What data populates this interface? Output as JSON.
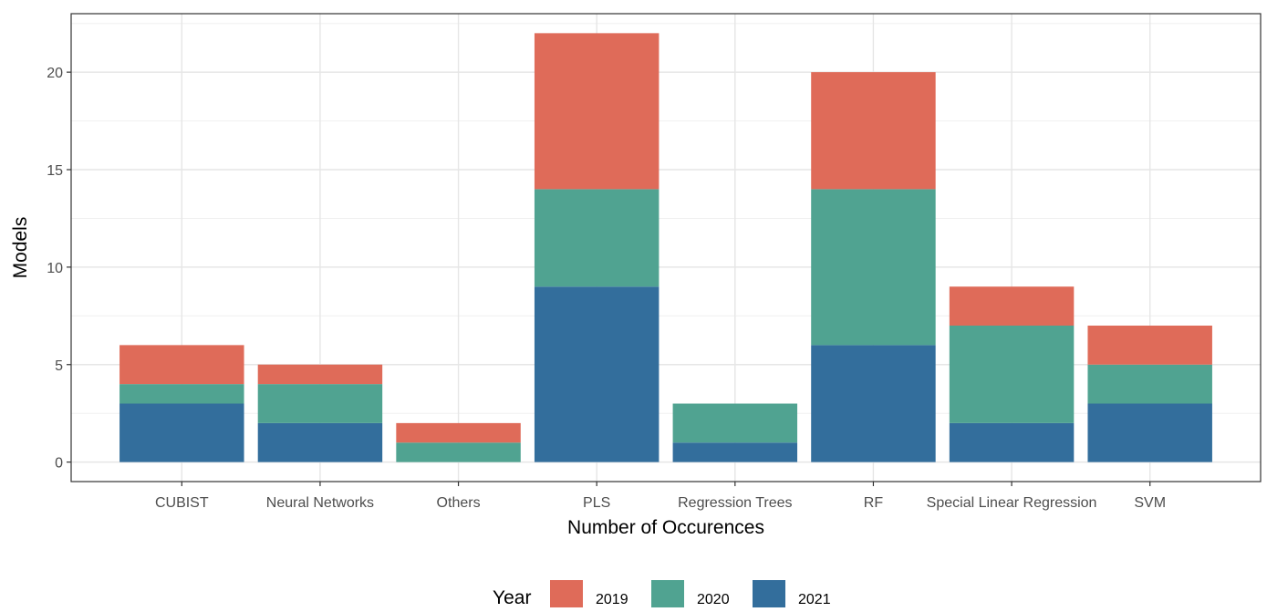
{
  "chart_data": {
    "type": "bar",
    "stacked": true,
    "categories": [
      "CUBIST",
      "Neural Networks",
      "Others",
      "PLS",
      "Regression Trees",
      "RF",
      "Special Linear Regression",
      "SVM"
    ],
    "series": [
      {
        "name": "2021",
        "color": "#336e9c",
        "values": [
          3,
          2,
          0,
          9,
          1,
          6,
          2,
          3
        ]
      },
      {
        "name": "2020",
        "color": "#50a391",
        "values": [
          1,
          2,
          1,
          5,
          2,
          8,
          5,
          2
        ]
      },
      {
        "name": "2019",
        "color": "#df6b59",
        "values": [
          2,
          1,
          1,
          8,
          0,
          6,
          2,
          2
        ]
      }
    ],
    "xlabel": "Number of Occurences",
    "ylabel": "Models",
    "ylim": [
      0,
      23
    ],
    "yticks": [
      0,
      5,
      10,
      15,
      20
    ],
    "grid": true,
    "legend": {
      "title": "Year",
      "position": "bottom",
      "entries": [
        "2019",
        "2020",
        "2021"
      ]
    }
  }
}
